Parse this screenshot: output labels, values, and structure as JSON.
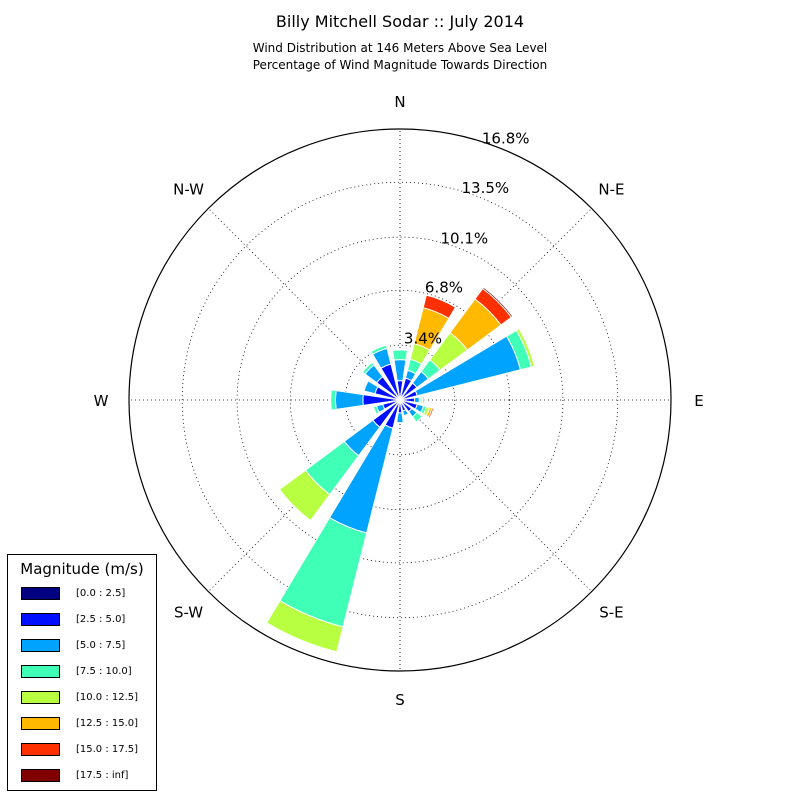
{
  "chart_data": {
    "type": "windrose",
    "title": "Billy Mitchell Sodar :: July 2014",
    "subtitle_lines": [
      "Wind Distribution at 146 Meters Above Sea Level",
      "Percentage of Wind Magnitude Towards Direction"
    ],
    "direction_labels": [
      "N",
      "N-E",
      "E",
      "S-E",
      "S",
      "S-W",
      "W",
      "N-W"
    ],
    "radial_tick_labels": [
      "3.4%",
      "6.8%",
      "10.1%",
      "13.5%",
      "16.8%"
    ],
    "radial_ticks": [
      3.4,
      6.8,
      10.1,
      13.5
    ],
    "rmax": 16.8,
    "legend_title": "Magnitude (m/s)",
    "bins": [
      {
        "label": "[0.0 : 2.5]",
        "color": "#000080"
      },
      {
        "label": "[2.5 : 5.0]",
        "color": "#0010ff"
      },
      {
        "label": "[5.0 : 7.5]",
        "color": "#00a4ff"
      },
      {
        "label": "[7.5 : 10.0]",
        "color": "#40ffb7"
      },
      {
        "label": "[10.0 : 12.5]",
        "color": "#b7ff40"
      },
      {
        "label": "[12.5 : 15.0]",
        "color": "#ffb900"
      },
      {
        "label": "[15.0 : 17.5]",
        "color": "#ff3000"
      },
      {
        "label": "[17.5 : inf]",
        "color": "#800000"
      }
    ],
    "sectors": [
      {
        "dir": 0,
        "values": [
          0.1,
          1.1,
          1.3,
          0.6,
          0,
          0,
          0,
          0
        ]
      },
      {
        "dir": 22.5,
        "values": [
          0.1,
          1.3,
          0.5,
          0.7,
          1.0,
          2.3,
          0.8,
          0
        ]
      },
      {
        "dir": 45,
        "values": [
          0.1,
          1.2,
          0.9,
          0.9,
          2.1,
          2.6,
          0.8,
          0.1
        ]
      },
      {
        "dir": 67.5,
        "values": [
          0.1,
          1.0,
          6.6,
          0.7,
          0.2,
          0,
          0,
          0
        ]
      },
      {
        "dir": 90,
        "values": [
          0.1,
          0.8,
          0.3,
          0.1,
          0.1,
          0.1,
          0,
          0
        ]
      },
      {
        "dir": 112.5,
        "values": [
          0.1,
          1.0,
          0.4,
          0.2,
          0.2,
          0.15,
          0.1,
          0
        ]
      },
      {
        "dir": 135,
        "values": [
          0.1,
          0.8,
          0.4,
          0.4,
          0,
          0,
          0,
          0
        ]
      },
      {
        "dir": 157.5,
        "values": [
          0.1,
          0.6,
          0.3,
          0,
          0,
          0,
          0,
          0
        ]
      },
      {
        "dir": 180,
        "values": [
          0.1,
          0.7,
          0.6,
          0,
          0,
          0,
          0,
          0
        ]
      },
      {
        "dir": 202.5,
        "values": [
          0.1,
          1.7,
          6.7,
          6.0,
          1.6,
          0,
          0,
          0
        ]
      },
      {
        "dir": 225,
        "values": [
          0.1,
          2.0,
          2.2,
          3.0,
          2.0,
          0,
          0,
          0
        ]
      },
      {
        "dir": 247.5,
        "values": [
          0.1,
          1.0,
          0.4,
          0.2,
          0,
          0,
          0,
          0
        ]
      },
      {
        "dir": 270,
        "values": [
          0.1,
          2.2,
          1.7,
          0.3,
          0,
          0,
          0,
          0
        ]
      },
      {
        "dir": 292.5,
        "values": [
          0.1,
          1.5,
          0.7,
          0,
          0,
          0,
          0,
          0
        ]
      },
      {
        "dir": 315,
        "values": [
          0.1,
          1.7,
          0.9,
          0.2,
          0,
          0,
          0,
          0
        ]
      },
      {
        "dir": 337.5,
        "values": [
          0.1,
          2.2,
          1.0,
          0.2,
          0,
          0,
          0,
          0
        ]
      }
    ]
  }
}
